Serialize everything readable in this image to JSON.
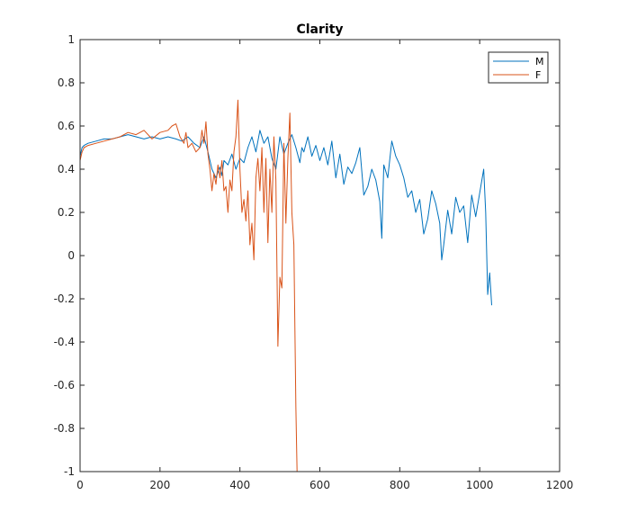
{
  "chart_data": {
    "type": "line",
    "title": "Clarity",
    "xlabel": "",
    "ylabel": "",
    "xlim": [
      0,
      1200
    ],
    "ylim": [
      -1,
      1
    ],
    "xticks": [
      0,
      200,
      400,
      600,
      800,
      1000,
      1200
    ],
    "yticks": [
      -1,
      -0.8,
      -0.6,
      -0.4,
      -0.2,
      0,
      0.2,
      0.4,
      0.6,
      0.8,
      1
    ],
    "xtick_labels": [
      "0",
      "200",
      "400",
      "600",
      "800",
      "1000",
      "1200"
    ],
    "ytick_labels": [
      "-1",
      "-0.8",
      "-0.6",
      "-0.4",
      "-0.2",
      "0",
      "0.2",
      "0.4",
      "0.6",
      "0.8",
      "1"
    ],
    "grid": false,
    "legend_position": "top-right",
    "series": [
      {
        "name": "M",
        "color": "#0072BD",
        "x": [
          0,
          5,
          10,
          20,
          40,
          60,
          80,
          100,
          120,
          140,
          160,
          180,
          200,
          220,
          240,
          255,
          270,
          285,
          300,
          310,
          320,
          330,
          340,
          350,
          355,
          360,
          370,
          380,
          390,
          400,
          410,
          420,
          430,
          440,
          450,
          460,
          470,
          480,
          490,
          500,
          510,
          520,
          530,
          540,
          550,
          555,
          560,
          570,
          580,
          590,
          600,
          610,
          620,
          630,
          640,
          650,
          660,
          670,
          680,
          690,
          700,
          710,
          720,
          730,
          740,
          750,
          755,
          760,
          770,
          780,
          790,
          800,
          810,
          820,
          830,
          840,
          850,
          860,
          870,
          880,
          890,
          900,
          905,
          910,
          920,
          930,
          940,
          950,
          960,
          970,
          980,
          990,
          1000,
          1010,
          1015,
          1020,
          1025,
          1030
        ],
        "y": [
          0.46,
          0.5,
          0.51,
          0.52,
          0.53,
          0.54,
          0.54,
          0.55,
          0.56,
          0.55,
          0.54,
          0.55,
          0.54,
          0.55,
          0.54,
          0.53,
          0.55,
          0.52,
          0.5,
          0.55,
          0.48,
          0.4,
          0.36,
          0.41,
          0.37,
          0.44,
          0.42,
          0.47,
          0.4,
          0.45,
          0.43,
          0.5,
          0.55,
          0.48,
          0.58,
          0.52,
          0.55,
          0.45,
          0.4,
          0.55,
          0.47,
          0.52,
          0.56,
          0.5,
          0.43,
          0.5,
          0.48,
          0.55,
          0.46,
          0.51,
          0.44,
          0.5,
          0.42,
          0.53,
          0.36,
          0.47,
          0.33,
          0.41,
          0.38,
          0.43,
          0.5,
          0.28,
          0.32,
          0.4,
          0.35,
          0.25,
          0.08,
          0.42,
          0.36,
          0.53,
          0.46,
          0.42,
          0.36,
          0.27,
          0.3,
          0.2,
          0.26,
          0.1,
          0.17,
          0.3,
          0.24,
          0.15,
          -0.02,
          0.05,
          0.21,
          0.1,
          0.27,
          0.2,
          0.23,
          0.06,
          0.28,
          0.18,
          0.29,
          0.4,
          0.2,
          -0.18,
          -0.08,
          -0.23
        ]
      },
      {
        "name": "F",
        "color": "#D95319",
        "x": [
          0,
          5,
          10,
          20,
          40,
          60,
          80,
          100,
          120,
          140,
          160,
          180,
          200,
          220,
          230,
          240,
          250,
          260,
          265,
          270,
          280,
          290,
          300,
          305,
          310,
          315,
          320,
          325,
          330,
          335,
          340,
          345,
          350,
          355,
          360,
          365,
          370,
          375,
          380,
          385,
          390,
          395,
          400,
          405,
          410,
          415,
          420,
          425,
          430,
          435,
          440,
          445,
          450,
          455,
          460,
          465,
          470,
          475,
          480,
          485,
          490,
          495,
          500,
          505,
          510,
          515,
          520,
          525,
          530,
          535,
          540,
          543
        ],
        "y": [
          0.44,
          0.48,
          0.5,
          0.51,
          0.52,
          0.53,
          0.54,
          0.55,
          0.57,
          0.56,
          0.58,
          0.54,
          0.57,
          0.58,
          0.6,
          0.61,
          0.55,
          0.52,
          0.57,
          0.5,
          0.52,
          0.48,
          0.5,
          0.58,
          0.52,
          0.62,
          0.47,
          0.4,
          0.3,
          0.38,
          0.33,
          0.42,
          0.36,
          0.44,
          0.3,
          0.32,
          0.2,
          0.35,
          0.3,
          0.48,
          0.55,
          0.72,
          0.4,
          0.2,
          0.26,
          0.16,
          0.3,
          0.05,
          0.15,
          -0.02,
          0.36,
          0.45,
          0.3,
          0.5,
          0.2,
          0.45,
          0.06,
          0.4,
          0.2,
          0.55,
          0.35,
          -0.42,
          -0.1,
          -0.15,
          0.52,
          0.15,
          0.45,
          0.66,
          0.2,
          0.05,
          -0.7,
          -1.0
        ]
      }
    ]
  }
}
